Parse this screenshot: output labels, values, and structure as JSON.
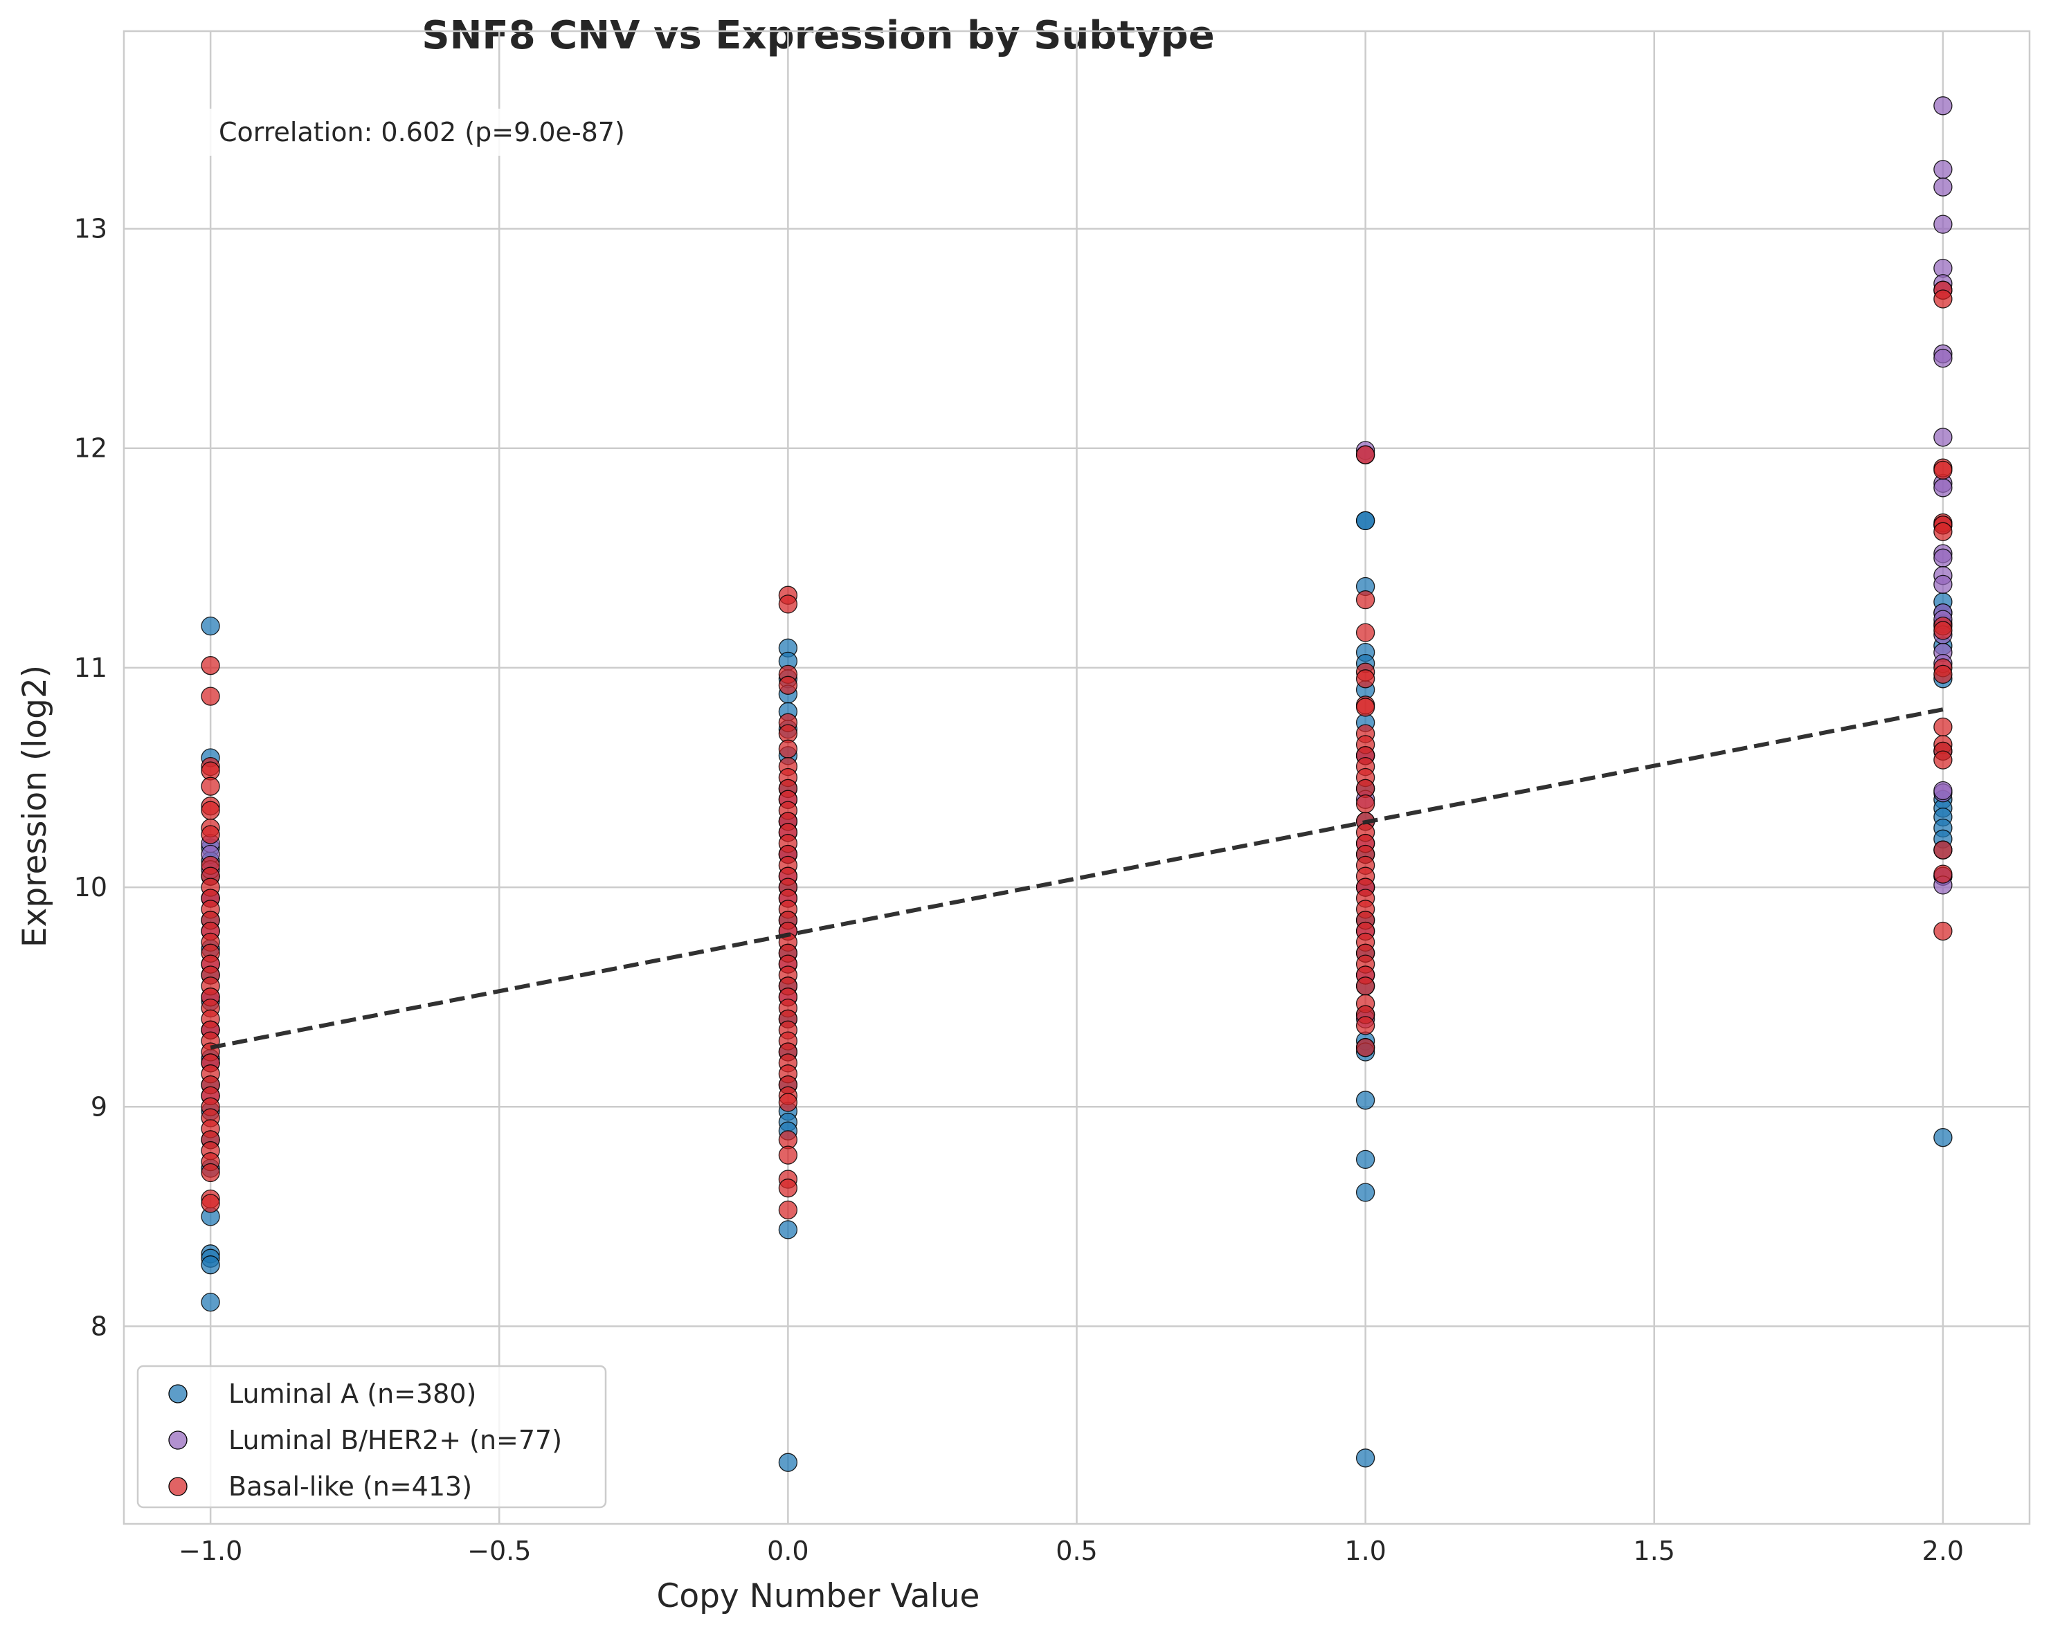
{
  "chart_data": {
    "type": "scatter",
    "title": "SNF8 CNV vs Expression by Subtype",
    "xlabel": "Copy Number Value",
    "ylabel": "Expression (log2)",
    "xlim": [
      -1.15,
      2.15
    ],
    "ylim": [
      7.1,
      13.9
    ],
    "xticks": [
      -1.0,
      -0.5,
      0.0,
      0.5,
      1.0,
      1.5,
      2.0
    ],
    "xtick_labels": [
      "−1.0",
      "−0.5",
      "0.0",
      "0.5",
      "1.0",
      "1.5",
      "2.0"
    ],
    "yticks": [
      8,
      9,
      10,
      11,
      12,
      13
    ],
    "ytick_labels": [
      "8",
      "9",
      "10",
      "11",
      "12",
      "13"
    ],
    "grid": true,
    "legend_position": "lower-left",
    "annotation": "Correlation: 0.602 (p=9.0e-87)",
    "series": [
      {
        "name": "Luminal A (n=380)",
        "color": "#1f77b4",
        "points": [
          [
            -1,
            11.19
          ],
          [
            -1,
            10.59
          ],
          [
            -1,
            10.18
          ],
          [
            -1,
            10.12
          ],
          [
            -1,
            10.05
          ],
          [
            -1,
            9.95
          ],
          [
            -1,
            9.85
          ],
          [
            -1,
            9.72
          ],
          [
            -1,
            9.6
          ],
          [
            -1,
            9.48
          ],
          [
            -1,
            9.35
          ],
          [
            -1,
            9.22
          ],
          [
            -1,
            9.1
          ],
          [
            -1,
            8.98
          ],
          [
            -1,
            8.85
          ],
          [
            -1,
            8.72
          ],
          [
            -1,
            8.5
          ],
          [
            -1,
            8.33
          ],
          [
            -1,
            8.31
          ],
          [
            -1,
            8.28
          ],
          [
            -1,
            8.11
          ],
          [
            0,
            11.09
          ],
          [
            0,
            11.03
          ],
          [
            0,
            10.95
          ],
          [
            0,
            10.88
          ],
          [
            0,
            10.8
          ],
          [
            0,
            10.72
          ],
          [
            0,
            10.6
          ],
          [
            0,
            10.45
          ],
          [
            0,
            10.3
          ],
          [
            0,
            10.15
          ],
          [
            0,
            10.0
          ],
          [
            0,
            9.85
          ],
          [
            0,
            9.7
          ],
          [
            0,
            9.55
          ],
          [
            0,
            9.4
          ],
          [
            0,
            9.25
          ],
          [
            0,
            9.1
          ],
          [
            0,
            8.98
          ],
          [
            0,
            8.93
          ],
          [
            0,
            8.89
          ],
          [
            0,
            8.44
          ],
          [
            0,
            7.38
          ],
          [
            1,
            11.67
          ],
          [
            1,
            11.67
          ],
          [
            1,
            11.37
          ],
          [
            1,
            11.07
          ],
          [
            1,
            11.02
          ],
          [
            1,
            10.9
          ],
          [
            1,
            10.75
          ],
          [
            1,
            10.6
          ],
          [
            1,
            10.45
          ],
          [
            1,
            10.3
          ],
          [
            1,
            10.15
          ],
          [
            1,
            10.0
          ],
          [
            1,
            9.85
          ],
          [
            1,
            9.7
          ],
          [
            1,
            9.55
          ],
          [
            1,
            9.42
          ],
          [
            1,
            9.3
          ],
          [
            1,
            9.27
          ],
          [
            1,
            9.25
          ],
          [
            1,
            9.03
          ],
          [
            1,
            8.76
          ],
          [
            1,
            8.61
          ],
          [
            1,
            7.4
          ],
          [
            2,
            11.3
          ],
          [
            2,
            11.25
          ],
          [
            2,
            11.2
          ],
          [
            2,
            11.1
          ],
          [
            2,
            10.95
          ],
          [
            2,
            10.62
          ],
          [
            2,
            10.4
          ],
          [
            2,
            10.36
          ],
          [
            2,
            10.32
          ],
          [
            2,
            10.27
          ],
          [
            2,
            10.22
          ],
          [
            2,
            10.17
          ],
          [
            2,
            10.05
          ],
          [
            2,
            8.86
          ]
        ]
      },
      {
        "name": "Luminal B/HER2+ (n=77)",
        "color": "#9467bd",
        "points": [
          [
            -1,
            10.2
          ],
          [
            -1,
            10.15
          ],
          [
            -1,
            10.08
          ],
          [
            -1,
            9.95
          ],
          [
            -1,
            9.8
          ],
          [
            -1,
            9.65
          ],
          [
            -1,
            9.5
          ],
          [
            -1,
            9.35
          ],
          [
            -1,
            9.2
          ],
          [
            -1,
            9.05
          ],
          [
            0,
            10.4
          ],
          [
            0,
            10.3
          ],
          [
            0,
            10.25
          ],
          [
            0,
            10.15
          ],
          [
            0,
            10.05
          ],
          [
            0,
            9.95
          ],
          [
            0,
            9.8
          ],
          [
            0,
            9.65
          ],
          [
            0,
            9.5
          ],
          [
            1,
            11.99
          ],
          [
            1,
            11.97
          ],
          [
            1,
            10.6
          ],
          [
            1,
            10.4
          ],
          [
            1,
            10.2
          ],
          [
            1,
            10.0
          ],
          [
            1,
            9.8
          ],
          [
            1,
            9.6
          ],
          [
            1,
            9.4
          ],
          [
            2,
            13.56
          ],
          [
            2,
            13.27
          ],
          [
            2,
            13.19
          ],
          [
            2,
            13.02
          ],
          [
            2,
            12.82
          ],
          [
            2,
            12.75
          ],
          [
            2,
            12.72
          ],
          [
            2,
            12.43
          ],
          [
            2,
            12.41
          ],
          [
            2,
            12.05
          ],
          [
            2,
            11.84
          ],
          [
            2,
            11.82
          ],
          [
            2,
            11.65
          ],
          [
            2,
            11.52
          ],
          [
            2,
            11.5
          ],
          [
            2,
            11.42
          ],
          [
            2,
            11.38
          ],
          [
            2,
            11.25
          ],
          [
            2,
            11.22
          ],
          [
            2,
            11.15
          ],
          [
            2,
            11.07
          ],
          [
            2,
            11.02
          ],
          [
            2,
            10.43
          ],
          [
            2,
            10.44
          ],
          [
            2,
            10.05
          ],
          [
            2,
            10.01
          ]
        ]
      },
      {
        "name": "Basal-like (n=413)",
        "color": "#d62728",
        "points": [
          [
            -1,
            11.01
          ],
          [
            -1,
            10.87
          ],
          [
            -1,
            10.55
          ],
          [
            -1,
            10.53
          ],
          [
            -1,
            10.46
          ],
          [
            -1,
            10.37
          ],
          [
            -1,
            10.35
          ],
          [
            -1,
            10.27
          ],
          [
            -1,
            10.24
          ],
          [
            -1,
            10.1
          ],
          [
            -1,
            10.05
          ],
          [
            -1,
            10.0
          ],
          [
            -1,
            9.95
          ],
          [
            -1,
            9.9
          ],
          [
            -1,
            9.85
          ],
          [
            -1,
            9.8
          ],
          [
            -1,
            9.75
          ],
          [
            -1,
            9.7
          ],
          [
            -1,
            9.65
          ],
          [
            -1,
            9.6
          ],
          [
            -1,
            9.55
          ],
          [
            -1,
            9.5
          ],
          [
            -1,
            9.45
          ],
          [
            -1,
            9.4
          ],
          [
            -1,
            9.35
          ],
          [
            -1,
            9.3
          ],
          [
            -1,
            9.25
          ],
          [
            -1,
            9.2
          ],
          [
            -1,
            9.15
          ],
          [
            -1,
            9.1
          ],
          [
            -1,
            9.05
          ],
          [
            -1,
            9.0
          ],
          [
            -1,
            8.95
          ],
          [
            -1,
            8.9
          ],
          [
            -1,
            8.85
          ],
          [
            -1,
            8.8
          ],
          [
            -1,
            8.75
          ],
          [
            -1,
            8.7
          ],
          [
            -1,
            8.58
          ],
          [
            -1,
            8.56
          ],
          [
            0,
            11.33
          ],
          [
            0,
            11.29
          ],
          [
            0,
            10.97
          ],
          [
            0,
            10.92
          ],
          [
            0,
            10.75
          ],
          [
            0,
            10.7
          ],
          [
            0,
            10.63
          ],
          [
            0,
            10.55
          ],
          [
            0,
            10.5
          ],
          [
            0,
            10.45
          ],
          [
            0,
            10.4
          ],
          [
            0,
            10.35
          ],
          [
            0,
            10.3
          ],
          [
            0,
            10.25
          ],
          [
            0,
            10.2
          ],
          [
            0,
            10.15
          ],
          [
            0,
            10.1
          ],
          [
            0,
            10.05
          ],
          [
            0,
            10.0
          ],
          [
            0,
            9.95
          ],
          [
            0,
            9.9
          ],
          [
            0,
            9.85
          ],
          [
            0,
            9.8
          ],
          [
            0,
            9.75
          ],
          [
            0,
            9.7
          ],
          [
            0,
            9.65
          ],
          [
            0,
            9.6
          ],
          [
            0,
            9.55
          ],
          [
            0,
            9.5
          ],
          [
            0,
            9.45
          ],
          [
            0,
            9.4
          ],
          [
            0,
            9.35
          ],
          [
            0,
            9.3
          ],
          [
            0,
            9.25
          ],
          [
            0,
            9.2
          ],
          [
            0,
            9.15
          ],
          [
            0,
            9.1
          ],
          [
            0,
            9.05
          ],
          [
            0,
            9.02
          ],
          [
            0,
            8.85
          ],
          [
            0,
            8.78
          ],
          [
            0,
            8.67
          ],
          [
            0,
            8.63
          ],
          [
            0,
            8.53
          ],
          [
            1,
            11.97
          ],
          [
            1,
            11.31
          ],
          [
            1,
            11.16
          ],
          [
            1,
            10.98
          ],
          [
            1,
            10.95
          ],
          [
            1,
            10.83
          ],
          [
            1,
            10.82
          ],
          [
            1,
            10.7
          ],
          [
            1,
            10.65
          ],
          [
            1,
            10.6
          ],
          [
            1,
            10.55
          ],
          [
            1,
            10.5
          ],
          [
            1,
            10.45
          ],
          [
            1,
            10.38
          ],
          [
            1,
            10.3
          ],
          [
            1,
            10.25
          ],
          [
            1,
            10.2
          ],
          [
            1,
            10.15
          ],
          [
            1,
            10.1
          ],
          [
            1,
            10.05
          ],
          [
            1,
            10.0
          ],
          [
            1,
            9.95
          ],
          [
            1,
            9.9
          ],
          [
            1,
            9.85
          ],
          [
            1,
            9.8
          ],
          [
            1,
            9.75
          ],
          [
            1,
            9.7
          ],
          [
            1,
            9.65
          ],
          [
            1,
            9.6
          ],
          [
            1,
            9.55
          ],
          [
            1,
            9.47
          ],
          [
            1,
            9.42
          ],
          [
            1,
            9.37
          ],
          [
            1,
            9.27
          ],
          [
            2,
            12.72
          ],
          [
            2,
            12.68
          ],
          [
            2,
            11.91
          ],
          [
            2,
            11.9
          ],
          [
            2,
            11.66
          ],
          [
            2,
            11.65
          ],
          [
            2,
            11.62
          ],
          [
            2,
            11.19
          ],
          [
            2,
            11.17
          ],
          [
            2,
            11.0
          ],
          [
            2,
            10.97
          ],
          [
            2,
            10.73
          ],
          [
            2,
            10.65
          ],
          [
            2,
            10.62
          ],
          [
            2,
            10.58
          ],
          [
            2,
            10.17
          ],
          [
            2,
            10.06
          ],
          [
            2,
            9.8
          ]
        ]
      }
    ],
    "trendline": {
      "style": "dashed",
      "color": "#262626",
      "x": [
        -1.0,
        2.0
      ],
      "y": [
        9.27,
        10.81
      ]
    }
  }
}
